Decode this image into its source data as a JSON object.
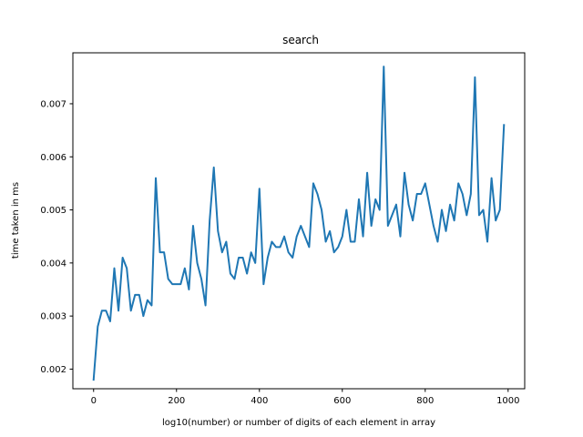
{
  "chart_data": {
    "type": "line",
    "title": "search",
    "xlabel": "log10(number) or number of digits of each element in array",
    "ylabel": "time taken in ms",
    "xlim": [
      -50,
      1040
    ],
    "ylim": [
      0.00163,
      0.00796
    ],
    "xticks": [
      0,
      200,
      400,
      600,
      800,
      1000
    ],
    "yticks": [
      0.002,
      0.003,
      0.004,
      0.005,
      0.006,
      0.007
    ],
    "ytick_labels": [
      "0.002",
      "0.003",
      "0.004",
      "0.005",
      "0.006",
      "0.007"
    ],
    "grid": false,
    "line_color": "#1f77b4",
    "series": [
      {
        "x": [
          0,
          10,
          20,
          30,
          40,
          50,
          60,
          70,
          80,
          90,
          100,
          110,
          120,
          130,
          140,
          150,
          160,
          170,
          180,
          190,
          200,
          210,
          220,
          230,
          240,
          250,
          260,
          270,
          280,
          290,
          300,
          310,
          320,
          330,
          340,
          350,
          360,
          370,
          380,
          390,
          400,
          410,
          420,
          430,
          440,
          450,
          460,
          470,
          480,
          490,
          500,
          510,
          520,
          530,
          540,
          550,
          560,
          570,
          580,
          590,
          600,
          610,
          620,
          630,
          640,
          650,
          660,
          670,
          680,
          690,
          700,
          710,
          720,
          730,
          740,
          750,
          760,
          770,
          780,
          790,
          800,
          810,
          820,
          830,
          840,
          850,
          860,
          870,
          880,
          890,
          900,
          910,
          920,
          930,
          940,
          950,
          960,
          970,
          980,
          990
        ],
        "y": [
          0.0018,
          0.0028,
          0.0031,
          0.0031,
          0.0029,
          0.0039,
          0.0031,
          0.0041,
          0.0039,
          0.0031,
          0.0034,
          0.0034,
          0.003,
          0.0033,
          0.0032,
          0.0056,
          0.0042,
          0.0042,
          0.0037,
          0.0036,
          0.0036,
          0.0036,
          0.0039,
          0.0035,
          0.0047,
          0.004,
          0.0037,
          0.0032,
          0.0048,
          0.0058,
          0.0046,
          0.0042,
          0.0044,
          0.0038,
          0.0037,
          0.0041,
          0.0041,
          0.0038,
          0.0042,
          0.004,
          0.0054,
          0.0036,
          0.0041,
          0.0044,
          0.0043,
          0.0043,
          0.0045,
          0.0042,
          0.0041,
          0.0045,
          0.0047,
          0.0045,
          0.0043,
          0.0055,
          0.0053,
          0.005,
          0.0044,
          0.0046,
          0.0042,
          0.0043,
          0.0045,
          0.005,
          0.0044,
          0.0044,
          0.0052,
          0.0045,
          0.0057,
          0.0047,
          0.0052,
          0.005,
          0.0077,
          0.0047,
          0.0049,
          0.0051,
          0.0045,
          0.0057,
          0.0051,
          0.0048,
          0.0053,
          0.0053,
          0.0055,
          0.0051,
          0.0047,
          0.0044,
          0.005,
          0.0046,
          0.0051,
          0.0048,
          0.0055,
          0.0053,
          0.0049,
          0.0053,
          0.0075,
          0.0049,
          0.005,
          0.0044,
          0.0056,
          0.0048,
          0.005,
          0.0066
        ]
      }
    ]
  }
}
